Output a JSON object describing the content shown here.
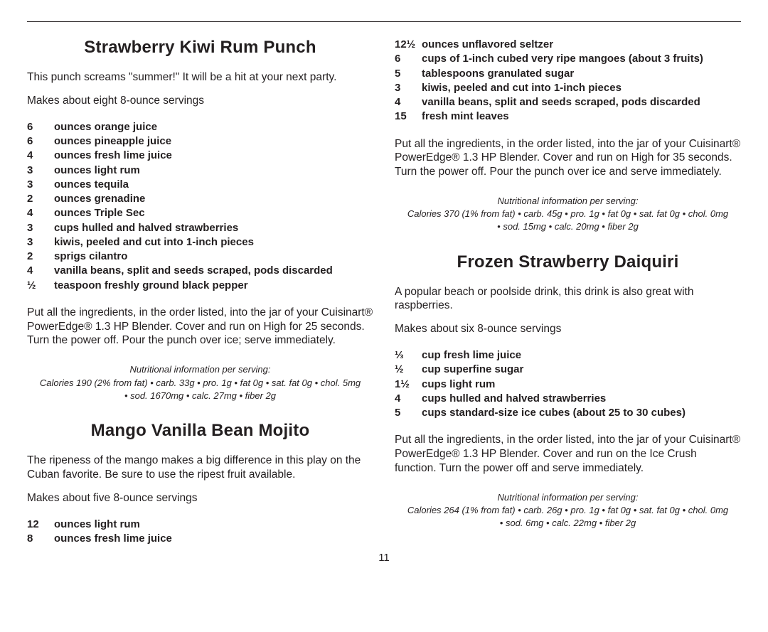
{
  "pageNumber": "11",
  "left": {
    "recipe1": {
      "title": "Strawberry Kiwi Rum Punch",
      "desc": "This punch screams \"summer!\" It will be a hit at your next party.",
      "yield": "Makes about eight 8-ounce servings",
      "ingredients": [
        {
          "qty": "6",
          "item": "ounces orange juice"
        },
        {
          "qty": "6",
          "item": "ounces pineapple juice"
        },
        {
          "qty": "4",
          "item": "ounces fresh lime juice"
        },
        {
          "qty": "3",
          "item": "ounces light rum"
        },
        {
          "qty": "3",
          "item": "ounces tequila"
        },
        {
          "qty": "2",
          "item": "ounces grenadine"
        },
        {
          "qty": "4",
          "item": "ounces Triple Sec"
        },
        {
          "qty": "3",
          "item": "cups hulled and halved strawberries"
        },
        {
          "qty": "3",
          "item": "kiwis, peeled and cut into 1-inch pieces"
        },
        {
          "qty": "2",
          "item": "sprigs cilantro"
        },
        {
          "qty": "4",
          "item": "vanilla beans, split and seeds scraped, pods discarded"
        },
        {
          "qty": "½",
          "item": "teaspoon freshly ground black pepper"
        }
      ],
      "instructions": "Put all the ingredients, in the order listed, into the jar of your Cuisinart® PowerEdge® 1.3 HP Blender. Cover and run on High for 25 seconds. Turn the power off. Pour the punch over ice; serve immediately.",
      "nutritionHeader": "Nutritional information per serving:",
      "nutritionLine1": "Calories 190 (2% from fat) • carb. 33g • pro. 1g • fat 0g • sat. fat 0g • chol. 5mg",
      "nutritionLine2": "• sod. 1670mg • calc. 27mg • fiber 2g"
    },
    "recipe2": {
      "title": "Mango Vanilla Bean Mojito",
      "desc": "The ripeness of the mango makes a big difference in this play on the Cuban favorite. Be sure to use the ripest fruit available.",
      "yield": "Makes about five 8-ounce servings",
      "ingredients": [
        {
          "qty": "12",
          "item": "ounces light rum"
        },
        {
          "qty": "8",
          "item": "ounces fresh lime juice"
        }
      ]
    }
  },
  "right": {
    "recipe2cont": {
      "ingredients": [
        {
          "qty": "12½",
          "item": "ounces unflavored seltzer"
        },
        {
          "qty": "6",
          "item": "cups of 1-inch cubed very ripe mangoes (about 3 fruits)"
        },
        {
          "qty": "5",
          "item": "tablespoons granulated sugar"
        },
        {
          "qty": "3",
          "item": "kiwis, peeled and cut into 1-inch pieces"
        },
        {
          "qty": "4",
          "item": "vanilla beans, split and seeds scraped, pods discarded"
        },
        {
          "qty": "15",
          "item": "fresh mint leaves"
        }
      ],
      "instructions": "Put all the ingredients, in the order listed, into the jar of your Cuisinart® PowerEdge® 1.3 HP Blender. Cover and run on High for 35 seconds. Turn the power off. Pour the punch over ice and serve immediately.",
      "nutritionHeader": "Nutritional information per serving:",
      "nutritionLine1": "Calories 370 (1% from fat) • carb. 45g • pro. 1g • fat 0g • sat. fat 0g • chol. 0mg",
      "nutritionLine2": "• sod. 15mg • calc. 20mg • fiber 2g"
    },
    "recipe3": {
      "title": "Frozen Strawberry Daiquiri",
      "desc": "A popular beach or poolside drink, this drink is also great with raspberries.",
      "yield": "Makes about six 8-ounce servings",
      "ingredients": [
        {
          "qty": "⅓",
          "item": "cup fresh lime juice"
        },
        {
          "qty": "½",
          "item": "cup superfine sugar"
        },
        {
          "qty": "1½",
          "item": "cups light rum"
        },
        {
          "qty": "4",
          "item": "cups hulled and halved strawberries"
        },
        {
          "qty": "5",
          "item": "cups standard-size ice cubes (about 25 to 30 cubes)"
        }
      ],
      "instructions": "Put all the ingredients, in the order listed, into the jar of your Cuisinart® PowerEdge® 1.3 HP Blender. Cover and run on the Ice Crush function. Turn the power off and serve immediately.",
      "nutritionHeader": "Nutritional information per serving:",
      "nutritionLine1": "Calories 264 (1% from fat) • carb. 26g • pro. 1g • fat 0g • sat. fat 0g • chol. 0mg",
      "nutritionLine2": "• sod. 6mg • calc. 22mg • fiber 2g"
    }
  }
}
